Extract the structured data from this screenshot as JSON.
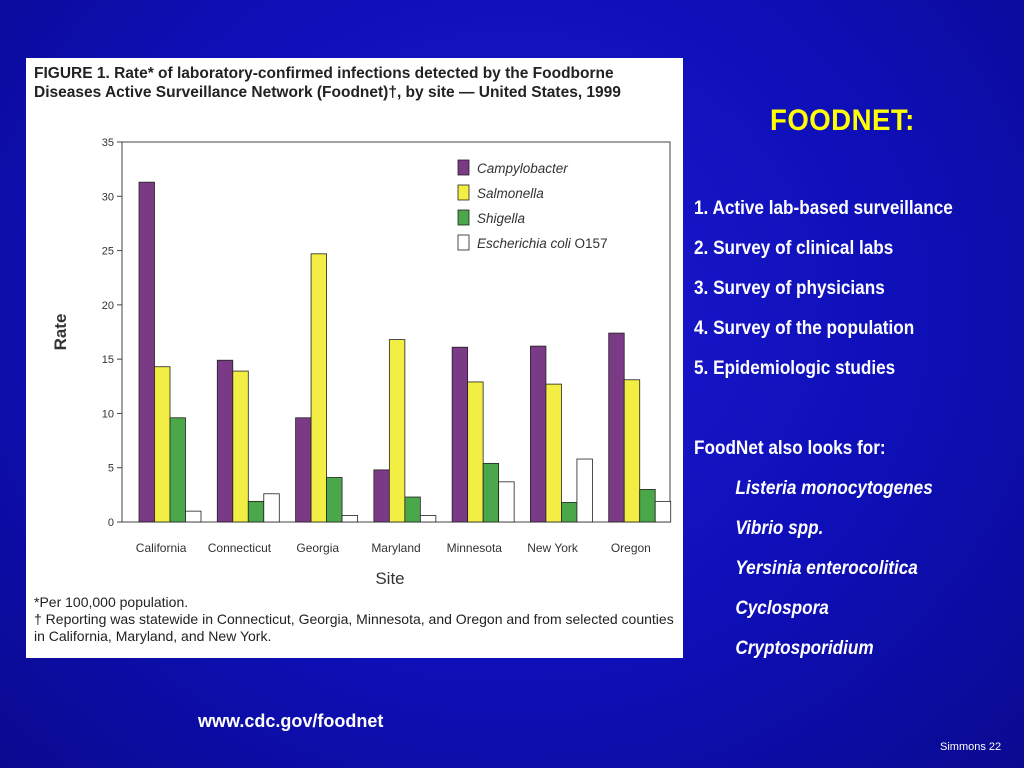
{
  "slide": {
    "heading": "FOODNET:",
    "bullets": [
      "1. Active lab-based surveillance",
      "2. Survey of clinical labs",
      "3. Survey of physicians",
      "4. Survey of the population",
      "5. Epidemiologic studies"
    ],
    "also_title": "FoodNet also looks for:",
    "organisms": [
      "Listeria monocytogenes",
      "Vibrio spp.",
      "Yersinia enterocolitica",
      "Cyclospora",
      "Cryptosporidium"
    ],
    "url": "www.cdc.gov/foodnet",
    "page_label": "Simmons 22"
  },
  "figure": {
    "title": "FIGURE 1. Rate* of laboratory-confirmed infections detected by the Foodborne Diseases Active Surveillance Network (Foodnet)†, by site — United States, 1999",
    "footnote_1": "*Per 100,000 population.",
    "footnote_2": "† Reporting was statewide in Connecticut, Georgia, Minnesota, and Oregon and from selected counties in California, Maryland, and New York."
  },
  "chart_data": {
    "type": "bar",
    "title": "FIGURE 1. Rate* of laboratory-confirmed infections detected by the Foodborne Diseases Active Surveillance Network (Foodnet)†, by site — United States, 1999",
    "xlabel": "Site",
    "ylabel": "Rate",
    "ylim": [
      0,
      35
    ],
    "yticks": [
      0,
      5,
      10,
      15,
      20,
      25,
      30,
      35
    ],
    "grid": false,
    "legend_position": "top-right",
    "categories": [
      "California",
      "Connecticut",
      "Georgia",
      "Maryland",
      "Minnesota",
      "New York",
      "Oregon"
    ],
    "series": [
      {
        "name": "Campylobacter",
        "color": "#7b3a86",
        "values": [
          31.3,
          14.9,
          9.6,
          4.8,
          16.1,
          16.2,
          17.4
        ]
      },
      {
        "name": "Salmonella",
        "color": "#f2ee44",
        "values": [
          14.3,
          13.9,
          24.7,
          16.8,
          12.9,
          12.7,
          13.1
        ]
      },
      {
        "name": "Shigella",
        "color": "#4aa84a",
        "values": [
          9.6,
          1.9,
          4.1,
          2.3,
          5.4,
          1.8,
          3.0
        ]
      },
      {
        "name": "Escherichia coli",
        "name_suffix": "O157",
        "color": "#ffffff",
        "values": [
          1.0,
          2.6,
          0.6,
          0.6,
          3.7,
          5.8,
          1.9
        ]
      }
    ]
  }
}
